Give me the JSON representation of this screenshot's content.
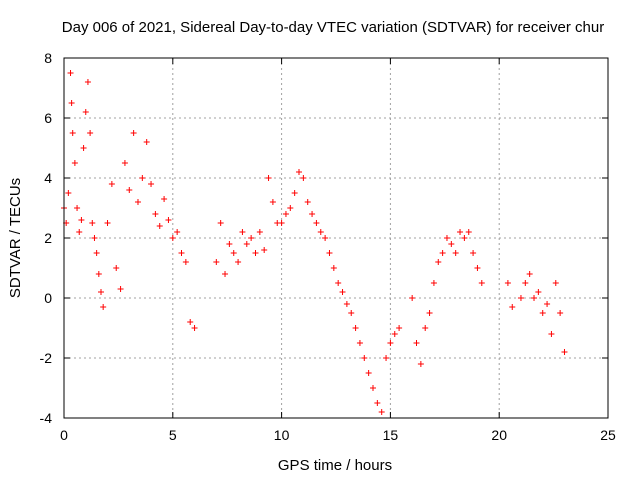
{
  "chart_data": {
    "type": "scatter",
    "title": "Day 006 of 2021, Sidereal Day-to-day VTEC variation (SDTVAR) for receiver chur",
    "xlabel": "GPS time / hours",
    "ylabel": "SDTVAR / TECUs",
    "xlim": [
      0,
      25
    ],
    "ylim": [
      -4,
      8
    ],
    "x_ticks": [
      0,
      5,
      10,
      15,
      20,
      25
    ],
    "x_tick_labels": [
      "0",
      "5",
      "10",
      "15",
      "20",
      "25"
    ],
    "y_ticks": [
      -4,
      -2,
      0,
      2,
      4,
      6,
      8
    ],
    "y_tick_labels": [
      "-4",
      "-2",
      "0",
      "2",
      "4",
      "6",
      "8"
    ],
    "grid": true,
    "marker": "+",
    "color": "#ff0000",
    "series": [
      {
        "name": "SDTVAR",
        "x": [
          0.0,
          0.1,
          0.2,
          0.3,
          0.35,
          0.4,
          0.5,
          0.6,
          0.7,
          0.8,
          0.9,
          1.0,
          1.1,
          1.2,
          1.3,
          1.4,
          1.5,
          1.6,
          1.7,
          1.8,
          2.0,
          2.2,
          2.4,
          2.6,
          2.8,
          3.0,
          3.2,
          3.4,
          3.6,
          3.8,
          4.0,
          4.2,
          4.4,
          4.6,
          4.8,
          5.0,
          5.2,
          5.4,
          5.6,
          5.8,
          6.0,
          7.0,
          7.2,
          7.4,
          7.6,
          7.8,
          8.0,
          8.2,
          8.4,
          8.6,
          8.8,
          9.0,
          9.2,
          9.4,
          9.6,
          9.8,
          10.0,
          10.2,
          10.4,
          10.6,
          10.8,
          11.0,
          11.2,
          11.4,
          11.6,
          11.8,
          12.0,
          12.2,
          12.4,
          12.6,
          12.8,
          13.0,
          13.2,
          13.4,
          13.6,
          13.8,
          14.0,
          14.2,
          14.4,
          14.6,
          14.8,
          15.0,
          15.2,
          15.4,
          16.0,
          16.2,
          16.4,
          16.6,
          16.8,
          17.0,
          17.2,
          17.4,
          17.6,
          17.8,
          18.0,
          18.2,
          18.4,
          18.6,
          18.8,
          19.0,
          19.2,
          20.4,
          20.6,
          21.0,
          21.2,
          21.4,
          21.6,
          21.8,
          22.0,
          22.2,
          22.4,
          22.6,
          22.8,
          23.0
        ],
        "y": [
          3.0,
          2.5,
          3.5,
          7.5,
          6.5,
          5.5,
          4.5,
          3.0,
          2.2,
          2.6,
          5.0,
          6.2,
          7.2,
          5.5,
          2.5,
          2.0,
          1.5,
          0.8,
          0.2,
          -0.3,
          2.5,
          3.8,
          1.0,
          0.3,
          4.5,
          3.6,
          5.5,
          3.2,
          4.0,
          5.2,
          3.8,
          2.8,
          2.4,
          3.3,
          2.6,
          2.0,
          2.2,
          1.5,
          1.2,
          -0.8,
          -1.0,
          1.2,
          2.5,
          0.8,
          1.8,
          1.5,
          1.2,
          2.2,
          1.8,
          2.0,
          1.5,
          2.2,
          1.6,
          4.0,
          3.2,
          2.5,
          2.5,
          2.8,
          3.0,
          3.5,
          4.2,
          4.0,
          3.2,
          2.8,
          2.5,
          2.2,
          2.0,
          1.5,
          1.0,
          0.5,
          0.2,
          -0.2,
          -0.5,
          -1.0,
          -1.5,
          -2.0,
          -2.5,
          -3.0,
          -3.5,
          -3.8,
          -2.0,
          -1.5,
          -1.2,
          -1.0,
          0.0,
          -1.5,
          -2.2,
          -1.0,
          -0.5,
          0.5,
          1.2,
          1.5,
          2.0,
          1.8,
          1.5,
          2.2,
          2.0,
          2.2,
          1.5,
          1.0,
          0.5,
          0.5,
          -0.3,
          0.0,
          0.5,
          0.8,
          0.0,
          0.2,
          -0.5,
          -0.2,
          -1.2,
          0.5,
          -0.5,
          -1.8
        ]
      }
    ]
  }
}
